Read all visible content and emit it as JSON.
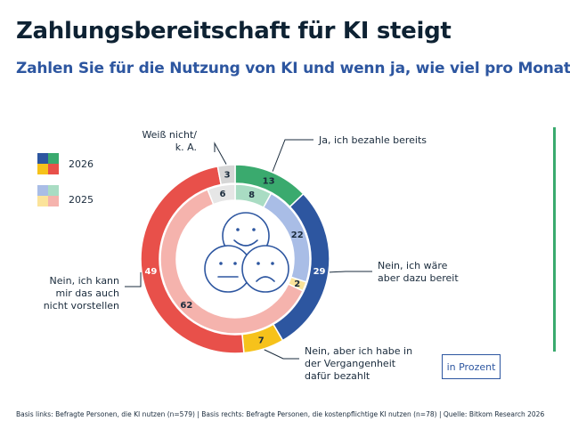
{
  "header": {
    "title": "Zahlungsbereitschaft für KI steigt",
    "subtitle": "Zahlen Sie für die Nutzung von KI und wenn ja, wie viel pro Monat?"
  },
  "legend": {
    "label_2026": "2026",
    "label_2025": "2025"
  },
  "unit_label": "in Prozent",
  "footnote": "Basis links: Befragte Personen, die KI nutzen (n=579) | Basis rechts: Befragte Personen, die kostenpflichtige KI nutzen (n=78) | Quelle: Bitkom Research 2026",
  "center_icon": "three-faces-icon",
  "chart_data": {
    "type": "donut",
    "unit": "in Prozent",
    "categories": [
      {
        "key": "ja",
        "lines": [
          "Ja, ich bezahle bereits"
        ]
      },
      {
        "key": "nein_waere",
        "lines": [
          "Nein, ich wäre",
          "aber dazu bereit"
        ]
      },
      {
        "key": "nein_vergangenheit",
        "lines": [
          "Nein, aber ich habe in",
          "der Vergangenheit",
          "dafür bezahlt"
        ]
      },
      {
        "key": "nein_nicht",
        "lines": [
          "Nein, ich kann",
          "mir das auch",
          "nicht vorstellen"
        ]
      },
      {
        "key": "weiss_nicht",
        "lines": [
          "Weiß nicht/",
          "k. A."
        ]
      }
    ],
    "series": [
      {
        "name": "2026",
        "ring": "outer",
        "values": [
          13,
          29,
          7,
          49,
          3
        ],
        "colors": [
          "#3aaa6e",
          "#2d56a0",
          "#f6c21b",
          "#e8504a",
          "#d6d6d6"
        ]
      },
      {
        "name": "2025",
        "ring": "inner",
        "values": [
          8,
          22,
          2,
          62,
          6
        ],
        "colors": [
          "#a9dcc3",
          "#a9bde6",
          "#fbe39a",
          "#f5b3ad",
          "#e6e6e6"
        ]
      }
    ]
  }
}
